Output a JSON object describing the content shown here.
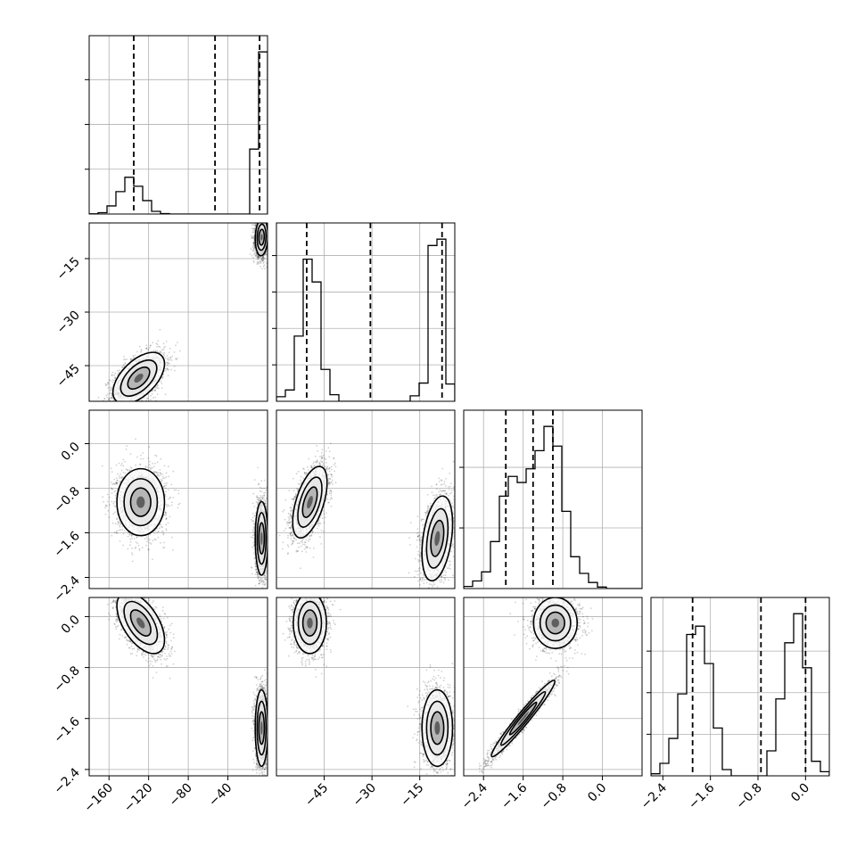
{
  "chart_data": {
    "type": "corner",
    "parameters": [
      {
        "ticks": [
          -160,
          -120,
          -80,
          -40
        ],
        "tick_labels": [
          "−160",
          "−120",
          "−80",
          "−40"
        ],
        "range": [
          -180,
          0
        ],
        "quantiles": [
          -135,
          -53,
          -8
        ],
        "hist": {
          "edges": [
            -180,
            -171,
            -162,
            -153,
            -144,
            -135,
            -126,
            -117,
            -108,
            -99,
            -90,
            -81,
            -72,
            -63,
            -54,
            -45,
            -36,
            -27,
            -18,
            -9,
            0
          ],
          "counts": [
            0.005,
            0.03,
            0.18,
            0.5,
            0.82,
            0.62,
            0.3,
            0.06,
            0.01,
            0,
            0,
            0,
            0,
            0,
            0,
            0,
            0,
            0,
            1.45,
            3.62
          ]
        }
      },
      {
        "ticks": [
          -45,
          -30,
          -15
        ],
        "tick_labels": [
          "−45",
          "−30",
          "−15"
        ],
        "range": [
          -60,
          -4
        ],
        "quantiles": [
          -50.5,
          -30.5,
          -8
        ],
        "hist": {
          "edges": [
            -60,
            -57.2,
            -54.4,
            -51.6,
            -48.8,
            -46,
            -43.2,
            -40.4,
            -37.6,
            -34.8,
            -32,
            -29.2,
            -26.4,
            -23.6,
            -20.8,
            -18,
            -15.2,
            -12.4,
            -9.6,
            -6.8,
            -4
          ],
          "counts": [
            0.25,
            0.62,
            3.58,
            7.8,
            6.55,
            1.75,
            0.36,
            0,
            0,
            0,
            0,
            0,
            0,
            0,
            0,
            0.3,
            1.0,
            8.55,
            8.9,
            0.95
          ]
        }
      },
      {
        "ticks": [
          -2.4,
          -1.6,
          -0.8,
          0.0
        ],
        "tick_labels": [
          "−2.4",
          "−1.6",
          "−0.8",
          "0.0"
        ],
        "range": [
          -2.8,
          0.8
        ],
        "quantiles": [
          -1.95,
          -1.4,
          -1.0
        ],
        "hist": {
          "edges": [
            -2.8,
            -2.62,
            -2.44,
            -2.26,
            -2.08,
            -1.9,
            -1.72,
            -1.54,
            -1.36,
            -1.18,
            -1.0,
            -0.82,
            -0.64,
            -0.46,
            -0.28,
            -0.1,
            0.08,
            0.26,
            0.44,
            0.62,
            0.8
          ],
          "counts": [
            0.07,
            0.25,
            0.55,
            1.55,
            3.05,
            3.7,
            3.5,
            3.95,
            4.55,
            5.35,
            4.7,
            2.55,
            1.05,
            0.5,
            0.2,
            0.05,
            0,
            0,
            0,
            0
          ]
        }
      },
      {
        "ticks": [
          -2.4,
          -1.6,
          -0.8,
          0.0
        ],
        "tick_labels": [
          "−2.4",
          "−1.6",
          "−0.8",
          "0.0"
        ],
        "range": [
          -2.6,
          0.4
        ],
        "quantiles": [
          -1.9,
          -0.75,
          0.0
        ],
        "hist": {
          "edges": [
            -2.6,
            -2.45,
            -2.3,
            -2.15,
            -2.0,
            -1.85,
            -1.7,
            -1.55,
            -1.4,
            -1.25,
            -1.1,
            -0.95,
            -0.8,
            -0.65,
            -0.5,
            -0.35,
            -0.2,
            -0.05,
            0.1,
            0.25,
            0.4
          ],
          "counts": [
            0.05,
            0.3,
            0.9,
            1.97,
            3.4,
            3.6,
            2.7,
            1.15,
            0.15,
            0,
            0,
            0,
            0,
            0.6,
            1.85,
            3.2,
            3.9,
            2.6,
            0.35,
            0.1
          ]
        }
      }
    ],
    "axis_ranges": {
      "row1_y": [
        -55,
        -5
      ],
      "row2_y": [
        -2.6,
        0.6
      ],
      "row3_y": [
        -2.5,
        0.3
      ]
    },
    "histogram_y_ticks": {
      "p0": [
        1,
        2,
        3
      ],
      "p1": [
        2,
        4,
        6,
        8
      ],
      "p2": [
        2,
        4
      ],
      "p3": [
        1,
        2,
        3
      ]
    },
    "y_axis_ticks": {
      "row1": {
        "values": [
          -15,
          -30,
          -45
        ],
        "labels": [
          "−15",
          "−30",
          "−45"
        ]
      },
      "row2": {
        "values": [
          0.0,
          -0.8,
          -1.6,
          -2.4
        ],
        "labels": [
          "0.0",
          "−0.8",
          "−1.6",
          "−2.4"
        ]
      },
      "row3": {
        "values": [
          0.0,
          -0.8,
          -1.6,
          -2.4
        ],
        "labels": [
          "0.0",
          "−0.8",
          "−1.6",
          "−2.4"
        ]
      }
    },
    "clusters_2d": [
      {
        "row": 1,
        "col": 0,
        "blobs": [
          {
            "x": -130,
            "y": -48.5,
            "sx": 13,
            "sy": 3.6,
            "rho": 0.55,
            "n": 2200
          },
          {
            "x": -6,
            "y": -9,
            "sx": 3.2,
            "sy": 2.6,
            "rho": 0.1,
            "n": 2200
          }
        ]
      },
      {
        "row": 2,
        "col": 0,
        "blobs": [
          {
            "x": -128,
            "y": -1.05,
            "sx": 12,
            "sy": 0.3,
            "rho": 0.0,
            "n": 2200
          },
          {
            "x": -6,
            "y": -1.7,
            "sx": 3.2,
            "sy": 0.33,
            "rho": 0.0,
            "n": 2200
          }
        ]
      },
      {
        "row": 2,
        "col": 1,
        "blobs": [
          {
            "x": -49.5,
            "y": -1.05,
            "sx": 2.7,
            "sy": 0.32,
            "rho": 0.55,
            "n": 2200
          },
          {
            "x": -9.5,
            "y": -1.7,
            "sx": 2.4,
            "sy": 0.38,
            "rho": 0.35,
            "n": 2200
          }
        ]
      },
      {
        "row": 3,
        "col": 0,
        "blobs": [
          {
            "x": -128,
            "y": -0.1,
            "sx": 12,
            "sy": 0.24,
            "rho": -0.55,
            "n": 2200
          },
          {
            "x": -6,
            "y": -1.75,
            "sx": 3.2,
            "sy": 0.3,
            "rho": 0.0,
            "n": 2200
          }
        ]
      },
      {
        "row": 3,
        "col": 1,
        "blobs": [
          {
            "x": -49.5,
            "y": -0.1,
            "sx": 2.6,
            "sy": 0.24,
            "rho": 0.0,
            "n": 2200
          },
          {
            "x": -9.5,
            "y": -1.75,
            "sx": 2.4,
            "sy": 0.3,
            "rho": 0.0,
            "n": 2200
          }
        ]
      },
      {
        "row": 3,
        "col": 2,
        "blobs": [
          {
            "x": -0.95,
            "y": -0.1,
            "sx": 0.22,
            "sy": 0.2,
            "rho": 0.0,
            "n": 2200
          },
          {
            "x": -1.6,
            "y": -1.6,
            "sx": 0.32,
            "sy": 0.3,
            "rho": 0.97,
            "n": 2200
          }
        ]
      }
    ]
  }
}
